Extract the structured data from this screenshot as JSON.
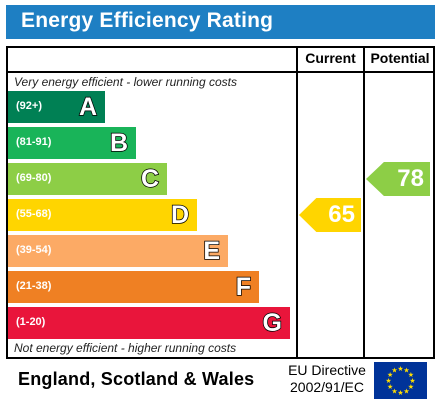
{
  "header": {
    "title": "Energy Efficiency Rating"
  },
  "columns": {
    "current": "Current",
    "potential": "Potential"
  },
  "notes": {
    "top": "Very energy efficient - lower running costs",
    "bottom": "Not energy efficient - higher running costs"
  },
  "footer": {
    "country": "England, Scotland & Wales",
    "directive_line1": "EU Directive",
    "directive_line2": "2002/91/EC"
  },
  "colors": {
    "title_bar": "#1e7fc3",
    "A": "#008054",
    "B": "#19b459",
    "C": "#8dce46",
    "D": "#ffd500",
    "E": "#fcaa65",
    "F": "#ef8023",
    "G": "#e9153b",
    "eu_flag": "#003399",
    "eu_stars": "#ffdd00"
  },
  "chart_data": {
    "type": "bar",
    "bands": [
      {
        "letter": "A",
        "range": "(92+)"
      },
      {
        "letter": "B",
        "range": "(81-91)"
      },
      {
        "letter": "C",
        "range": "(69-80)"
      },
      {
        "letter": "D",
        "range": "(55-68)"
      },
      {
        "letter": "E",
        "range": "(39-54)"
      },
      {
        "letter": "F",
        "range": "(21-38)"
      },
      {
        "letter": "G",
        "range": "(1-20)"
      }
    ],
    "current": {
      "value": 65,
      "band": "D"
    },
    "potential": {
      "value": 78,
      "band": "C"
    }
  }
}
